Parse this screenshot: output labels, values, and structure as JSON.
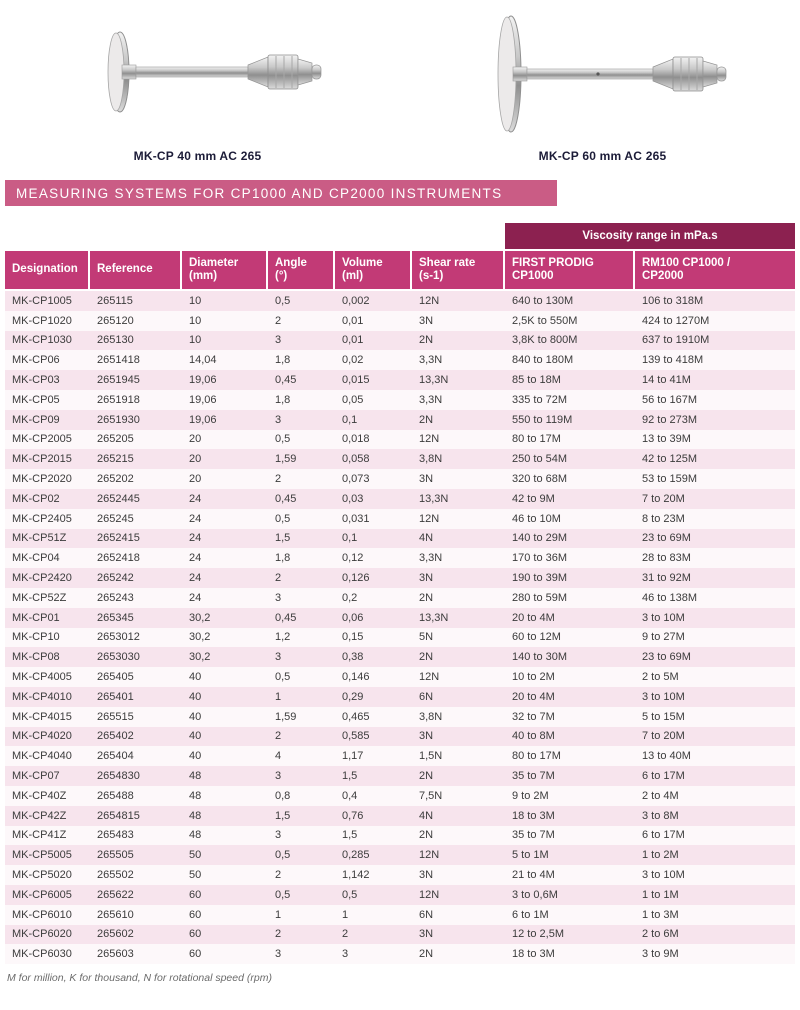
{
  "colors": {
    "banner_bg": "#ca5c85",
    "header_bg": "#c23a76",
    "group_header_bg": "#8c2150",
    "row_alt_bg": "#f7e4ed",
    "body_text": "#3c3c3c",
    "caption_text": "#1c1c38",
    "footnote_text": "#6b6b6b"
  },
  "products": [
    {
      "caption": "MK-CP 40 mm AC 265",
      "image": "cone-plate-spindle-40mm"
    },
    {
      "caption": "MK-CP 60 mm AC 265",
      "image": "cone-plate-spindle-60mm"
    }
  ],
  "banner": {
    "title": "MEASURING SYSTEMS FOR CP1000 AND CP2000 INSTRUMENTS"
  },
  "table": {
    "group_header": "Viscosity range in mPa.s",
    "columns": [
      {
        "lines": [
          "Designation"
        ]
      },
      {
        "lines": [
          "Reference"
        ]
      },
      {
        "lines": [
          "Diameter",
          "(mm)"
        ]
      },
      {
        "lines": [
          "Angle",
          "(°)"
        ]
      },
      {
        "lines": [
          "Volume",
          "(ml)"
        ]
      },
      {
        "lines": [
          "Shear rate",
          "(s-1)"
        ]
      },
      {
        "lines": [
          "FIRST PRODIG",
          "CP1000"
        ]
      },
      {
        "lines": [
          "RM100 CP1000 /",
          "CP2000"
        ]
      }
    ],
    "rows": [
      [
        "MK-CP1005",
        "265115",
        "10",
        "0,5",
        "0,002",
        "12N",
        "640 to 130M",
        "106 to 318M"
      ],
      [
        "MK-CP1020",
        "265120",
        "10",
        "2",
        "0,01",
        "3N",
        "2,5K to 550M",
        "424 to 1270M"
      ],
      [
        "MK-CP1030",
        "265130",
        "10",
        "3",
        "0,01",
        "2N",
        "3,8K to 800M",
        "637 to 1910M"
      ],
      [
        "MK-CP06",
        "2651418",
        "14,04",
        "1,8",
        "0,02",
        "3,3N",
        "840 to 180M",
        "139 to 418M"
      ],
      [
        "MK-CP03",
        "2651945",
        "19,06",
        "0,45",
        "0,015",
        "13,3N",
        "85 to 18M",
        "14 to 41M"
      ],
      [
        "MK-CP05",
        "2651918",
        "19,06",
        "1,8",
        "0,05",
        "3,3N",
        "335 to 72M",
        "56 to 167M"
      ],
      [
        "MK-CP09",
        "2651930",
        "19,06",
        "3",
        "0,1",
        "2N",
        "550 to 119M",
        "92 to 273M"
      ],
      [
        "MK-CP2005",
        "265205",
        "20",
        "0,5",
        "0,018",
        "12N",
        "80 to 17M",
        "13 to 39M"
      ],
      [
        "MK-CP2015",
        "265215",
        "20",
        "1,59",
        "0,058",
        "3,8N",
        "250 to 54M",
        "42 to 125M"
      ],
      [
        "MK-CP2020",
        "265202",
        "20",
        "2",
        "0,073",
        "3N",
        "320 to 68M",
        "53 to 159M"
      ],
      [
        "MK-CP02",
        "2652445",
        "24",
        "0,45",
        "0,03",
        "13,3N",
        "42 to 9M",
        "7 to 20M"
      ],
      [
        "MK-CP2405",
        "265245",
        "24",
        "0,5",
        "0,031",
        "12N",
        "46 to 10M",
        "8 to 23M"
      ],
      [
        "MK-CP51Z",
        "2652415",
        "24",
        "1,5",
        "0,1",
        "4N",
        "140 to 29M",
        "23 to 69M"
      ],
      [
        "MK-CP04",
        "2652418",
        "24",
        "1,8",
        "0,12",
        "3,3N",
        "170 to 36M",
        "28 to 83M"
      ],
      [
        "MK-CP2420",
        "265242",
        "24",
        "2",
        "0,126",
        "3N",
        "190 to 39M",
        "31 to 92M"
      ],
      [
        "MK-CP52Z",
        "265243",
        "24",
        "3",
        "0,2",
        "2N",
        "280 to 59M",
        "46 to 138M"
      ],
      [
        "MK-CP01",
        "265345",
        "30,2",
        "0,45",
        "0,06",
        "13,3N",
        "20 to 4M",
        "3 to 10M"
      ],
      [
        "MK-CP10",
        "2653012",
        "30,2",
        "1,2",
        "0,15",
        "5N",
        "60 to 12M",
        "9 to 27M"
      ],
      [
        "MK-CP08",
        "2653030",
        "30,2",
        "3",
        "0,38",
        "2N",
        "140 to 30M",
        "23 to 69M"
      ],
      [
        "MK-CP4005",
        "265405",
        "40",
        "0,5",
        "0,146",
        "12N",
        "10 to 2M",
        "2 to 5M"
      ],
      [
        "MK-CP4010",
        "265401",
        "40",
        "1",
        "0,29",
        "6N",
        "20 to 4M",
        "3 to 10M"
      ],
      [
        "MK-CP4015",
        "265515",
        "40",
        "1,59",
        "0,465",
        "3,8N",
        "32 to 7M",
        "5 to 15M"
      ],
      [
        "MK-CP4020",
        "265402",
        "40",
        "2",
        "0,585",
        "3N",
        "40 to 8M",
        "7 to 20M"
      ],
      [
        "MK-CP4040",
        "265404",
        "40",
        "4",
        "1,17",
        "1,5N",
        "80 to 17M",
        "13 to 40M"
      ],
      [
        "MK-CP07",
        "2654830",
        "48",
        "3",
        "1,5",
        "2N",
        "35 to 7M",
        "6 to 17M"
      ],
      [
        "MK-CP40Z",
        "265488",
        "48",
        "0,8",
        "0,4",
        "7,5N",
        "9 to 2M",
        "2 to 4M"
      ],
      [
        "MK-CP42Z",
        "2654815",
        "48",
        "1,5",
        "0,76",
        "4N",
        "18 to 3M",
        "3 to 8M"
      ],
      [
        "MK-CP41Z",
        "265483",
        "48",
        "3",
        "1,5",
        "2N",
        "35 to 7M",
        "6 to 17M"
      ],
      [
        "MK-CP5005",
        "265505",
        "50",
        "0,5",
        "0,285",
        "12N",
        "5 to 1M",
        "1 to 2M"
      ],
      [
        "MK-CP5020",
        "265502",
        "50",
        "2",
        "1,142",
        "3N",
        "21 to 4M",
        "3 to 10M"
      ],
      [
        "MK-CP6005",
        "265622",
        "60",
        "0,5",
        "0,5",
        "12N",
        "3 to 0,6M",
        "1 to 1M"
      ],
      [
        "MK-CP6010",
        "265610",
        "60",
        "1",
        "1",
        "6N",
        "6 to 1M",
        "1 to 3M"
      ],
      [
        "MK-CP6020",
        "265602",
        "60",
        "2",
        "2",
        "3N",
        "12 to 2,5M",
        "2 to 6M"
      ],
      [
        "MK-CP6030",
        "265603",
        "60",
        "3",
        "3",
        "2N",
        "18 to 3M",
        "3 to 9M"
      ]
    ]
  },
  "footnote": "M for million, K for thousand, N for rotational speed (rpm)"
}
